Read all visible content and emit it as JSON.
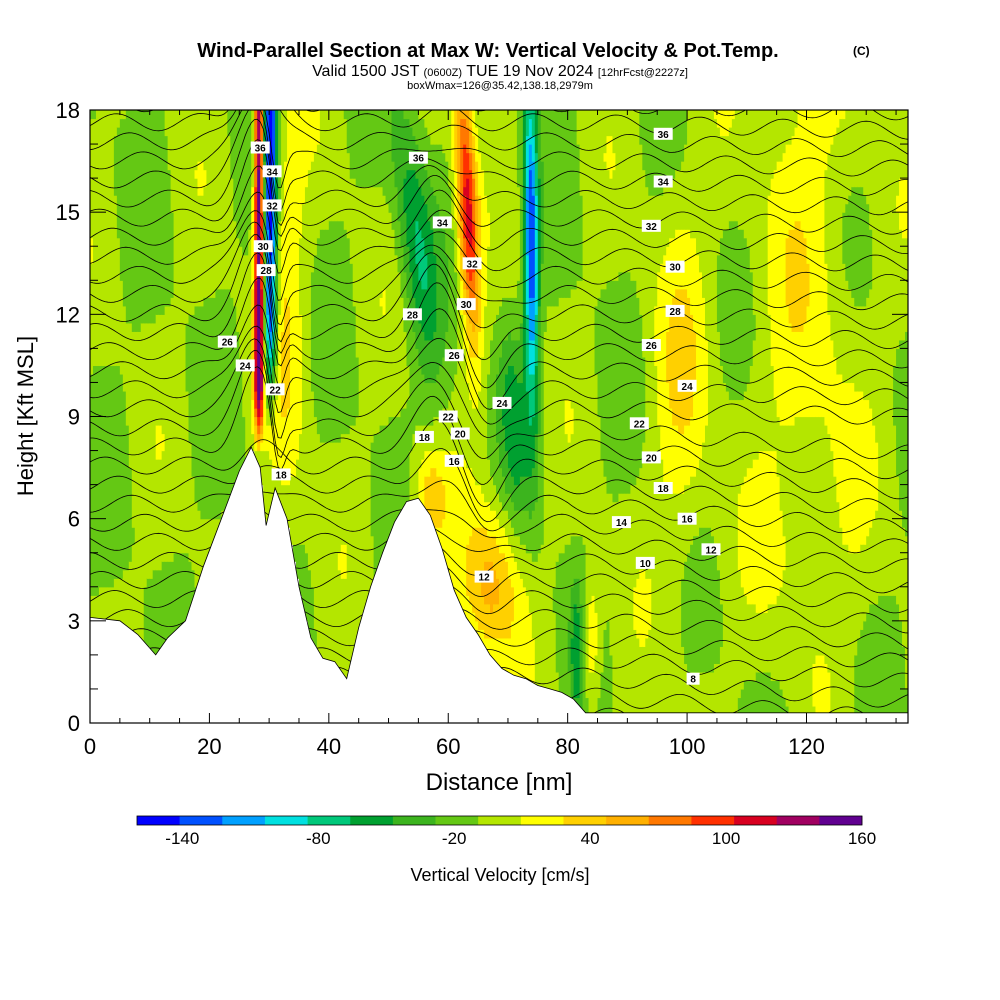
{
  "header": {
    "title": "Wind-Parallel Section at Max W: Vertical Velocity & Pot.Temp.",
    "copyright": "(C)",
    "valid_prefix": "Valid 1500 JST",
    "valid_utc": "(0600Z)",
    "valid_date": "TUE 19 Nov 2024",
    "forecast_info": "[12hrFcst@2227z]",
    "box_info": "boxWmax=126@35.42,138.18,2979m"
  },
  "chart_data": {
    "type": "heatmap",
    "title": "Wind-Parallel Section at Max W: Vertical Velocity & Pot.Temp.",
    "xlabel": "Distance [nm]",
    "ylabel": "Height [Kft MSL]",
    "xlim": [
      0,
      137
    ],
    "ylim": [
      0,
      18
    ],
    "x_ticks": [
      "0",
      "20",
      "40",
      "60",
      "80",
      "100",
      "120"
    ],
    "y_ticks": [
      "0",
      "3",
      "6",
      "9",
      "12",
      "15",
      "18"
    ],
    "colorbar": {
      "label": "Vertical Velocity [cm/s]",
      "ticks": [
        "-140",
        "-80",
        "-20",
        "40",
        "100",
        "160"
      ],
      "tick_values": [
        -140,
        -80,
        -20,
        40,
        100,
        160
      ],
      "min": -160,
      "max": 160,
      "colors": [
        "#0000ff",
        "#0050ff",
        "#00a0ff",
        "#00e0e0",
        "#00c87a",
        "#00a030",
        "#3cb41e",
        "#64c814",
        "#b4e600",
        "#ffff00",
        "#ffd000",
        "#ffb000",
        "#ff7800",
        "#ff3000",
        "#d80020",
        "#a00060",
        "#600090"
      ]
    },
    "terrain": [
      [
        0,
        3.1
      ],
      [
        5,
        3.0
      ],
      [
        8,
        2.6
      ],
      [
        11,
        2.0
      ],
      [
        13,
        2.5
      ],
      [
        16,
        3.0
      ],
      [
        19,
        4.6
      ],
      [
        22,
        6.0
      ],
      [
        25,
        7.4
      ],
      [
        27,
        8.1
      ],
      [
        28.5,
        7.5
      ],
      [
        29.5,
        5.8
      ],
      [
        31,
        6.9
      ],
      [
        33,
        6.0
      ],
      [
        35,
        4.0
      ],
      [
        37,
        2.5
      ],
      [
        39,
        1.9
      ],
      [
        41,
        1.8
      ],
      [
        43,
        1.3
      ],
      [
        45,
        2.8
      ],
      [
        47,
        4.0
      ],
      [
        49,
        5.0
      ],
      [
        51,
        5.9
      ],
      [
        53,
        6.5
      ],
      [
        55,
        6.6
      ],
      [
        57,
        6.1
      ],
      [
        59,
        5.1
      ],
      [
        61,
        3.9
      ],
      [
        63,
        3.1
      ],
      [
        65,
        2.6
      ],
      [
        67,
        2.0
      ],
      [
        69,
        1.6
      ],
      [
        71,
        1.4
      ],
      [
        73,
        1.3
      ],
      [
        75,
        1.1
      ],
      [
        77,
        1.0
      ],
      [
        79,
        0.9
      ],
      [
        81,
        0.7
      ],
      [
        83,
        0.3
      ],
      [
        137,
        0.3
      ]
    ],
    "theta_contours": [
      {
        "label": "8",
        "x": 101,
        "y": 1.3
      },
      {
        "label": "10",
        "x": 93,
        "y": 4.7
      },
      {
        "label": "12",
        "x": 104,
        "y": 5.1
      },
      {
        "label": "12",
        "x": 66,
        "y": 4.3
      },
      {
        "label": "14",
        "x": 89,
        "y": 5.9
      },
      {
        "label": "16",
        "x": 100,
        "y": 6.0
      },
      {
        "label": "16",
        "x": 61,
        "y": 7.7
      },
      {
        "label": "18",
        "x": 96,
        "y": 6.9
      },
      {
        "label": "18",
        "x": 56,
        "y": 8.4
      },
      {
        "label": "20",
        "x": 94,
        "y": 7.8
      },
      {
        "label": "20",
        "x": 62,
        "y": 8.5
      },
      {
        "label": "22",
        "x": 92,
        "y": 8.8
      },
      {
        "label": "22",
        "x": 60,
        "y": 9.0
      },
      {
        "label": "24",
        "x": 100,
        "y": 9.9
      },
      {
        "label": "24",
        "x": 69,
        "y": 9.4
      },
      {
        "label": "26",
        "x": 94,
        "y": 11.1
      },
      {
        "label": "26",
        "x": 61,
        "y": 10.8
      },
      {
        "label": "28",
        "x": 98,
        "y": 12.1
      },
      {
        "label": "28",
        "x": 54,
        "y": 12.0
      },
      {
        "label": "30",
        "x": 98,
        "y": 13.4
      },
      {
        "label": "30",
        "x": 63,
        "y": 12.3
      },
      {
        "label": "32",
        "x": 94,
        "y": 14.6
      },
      {
        "label": "32",
        "x": 64,
        "y": 13.5
      },
      {
        "label": "34",
        "x": 96,
        "y": 15.9
      },
      {
        "label": "34",
        "x": 59,
        "y": 14.7
      },
      {
        "label": "36",
        "x": 96,
        "y": 17.3
      },
      {
        "label": "36",
        "x": 55,
        "y": 16.6
      },
      {
        "label": "24",
        "x": 26,
        "y": 10.5
      },
      {
        "label": "26",
        "x": 23,
        "y": 11.2
      },
      {
        "label": "28",
        "x": 29.5,
        "y": 13.3
      },
      {
        "label": "30",
        "x": 29,
        "y": 14.0
      },
      {
        "label": "32",
        "x": 30.5,
        "y": 15.2
      },
      {
        "label": "34",
        "x": 30.5,
        "y": 16.2
      },
      {
        "label": "36",
        "x": 28.5,
        "y": 16.9
      },
      {
        "label": "22",
        "x": 31,
        "y": 9.8
      },
      {
        "label": "18",
        "x": 32,
        "y": 7.3
      }
    ]
  }
}
